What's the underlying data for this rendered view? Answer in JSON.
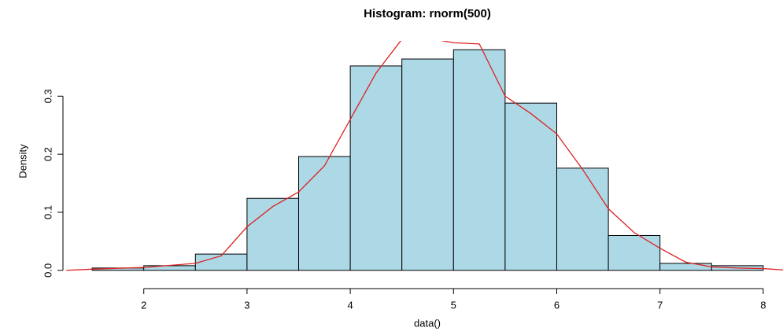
{
  "chart_data": {
    "type": "histogram",
    "title": "Histogram: rnorm(500)",
    "x_label": "data()",
    "y_label": "Density",
    "bins": [
      1.5,
      2,
      2.5,
      3,
      3.5,
      4,
      4.5,
      5,
      5.5,
      6,
      6.5,
      7,
      7.5,
      8
    ],
    "values": [
      0.004,
      0.008,
      0.028,
      0.124,
      0.196,
      0.352,
      0.364,
      0.38,
      0.288,
      0.176,
      0.06,
      0.012,
      0.008
    ],
    "color": "#add8e6",
    "density": {
      "color": "#dd2222",
      "x": [
        1.25,
        1.5,
        2.0,
        2.5,
        2.75,
        3.0,
        3.25,
        3.5,
        3.75,
        4.0,
        4.25,
        4.5,
        4.75,
        5.0,
        5.25,
        5.5,
        5.75,
        6.0,
        6.25,
        6.5,
        6.75,
        7.0,
        7.25,
        7.5,
        7.75,
        8.0,
        8.25
      ],
      "values": [
        0.0,
        0.002,
        0.005,
        0.012,
        0.025,
        0.075,
        0.11,
        0.135,
        0.18,
        0.26,
        0.34,
        0.398,
        0.4,
        0.392,
        0.39,
        0.3,
        0.27,
        0.235,
        0.174,
        0.106,
        0.065,
        0.038,
        0.014,
        0.006,
        0.004,
        0.003,
        0.0
      ]
    },
    "xlim": [
      1.24,
      8.26
    ],
    "ylim": [
      -0.0152,
      0.3952
    ],
    "xticks": [
      2,
      3,
      4,
      5,
      6,
      7,
      8
    ],
    "yticks": [
      {
        "value": 0,
        "label": "0.0"
      },
      0.1,
      0.2,
      0.3
    ]
  }
}
